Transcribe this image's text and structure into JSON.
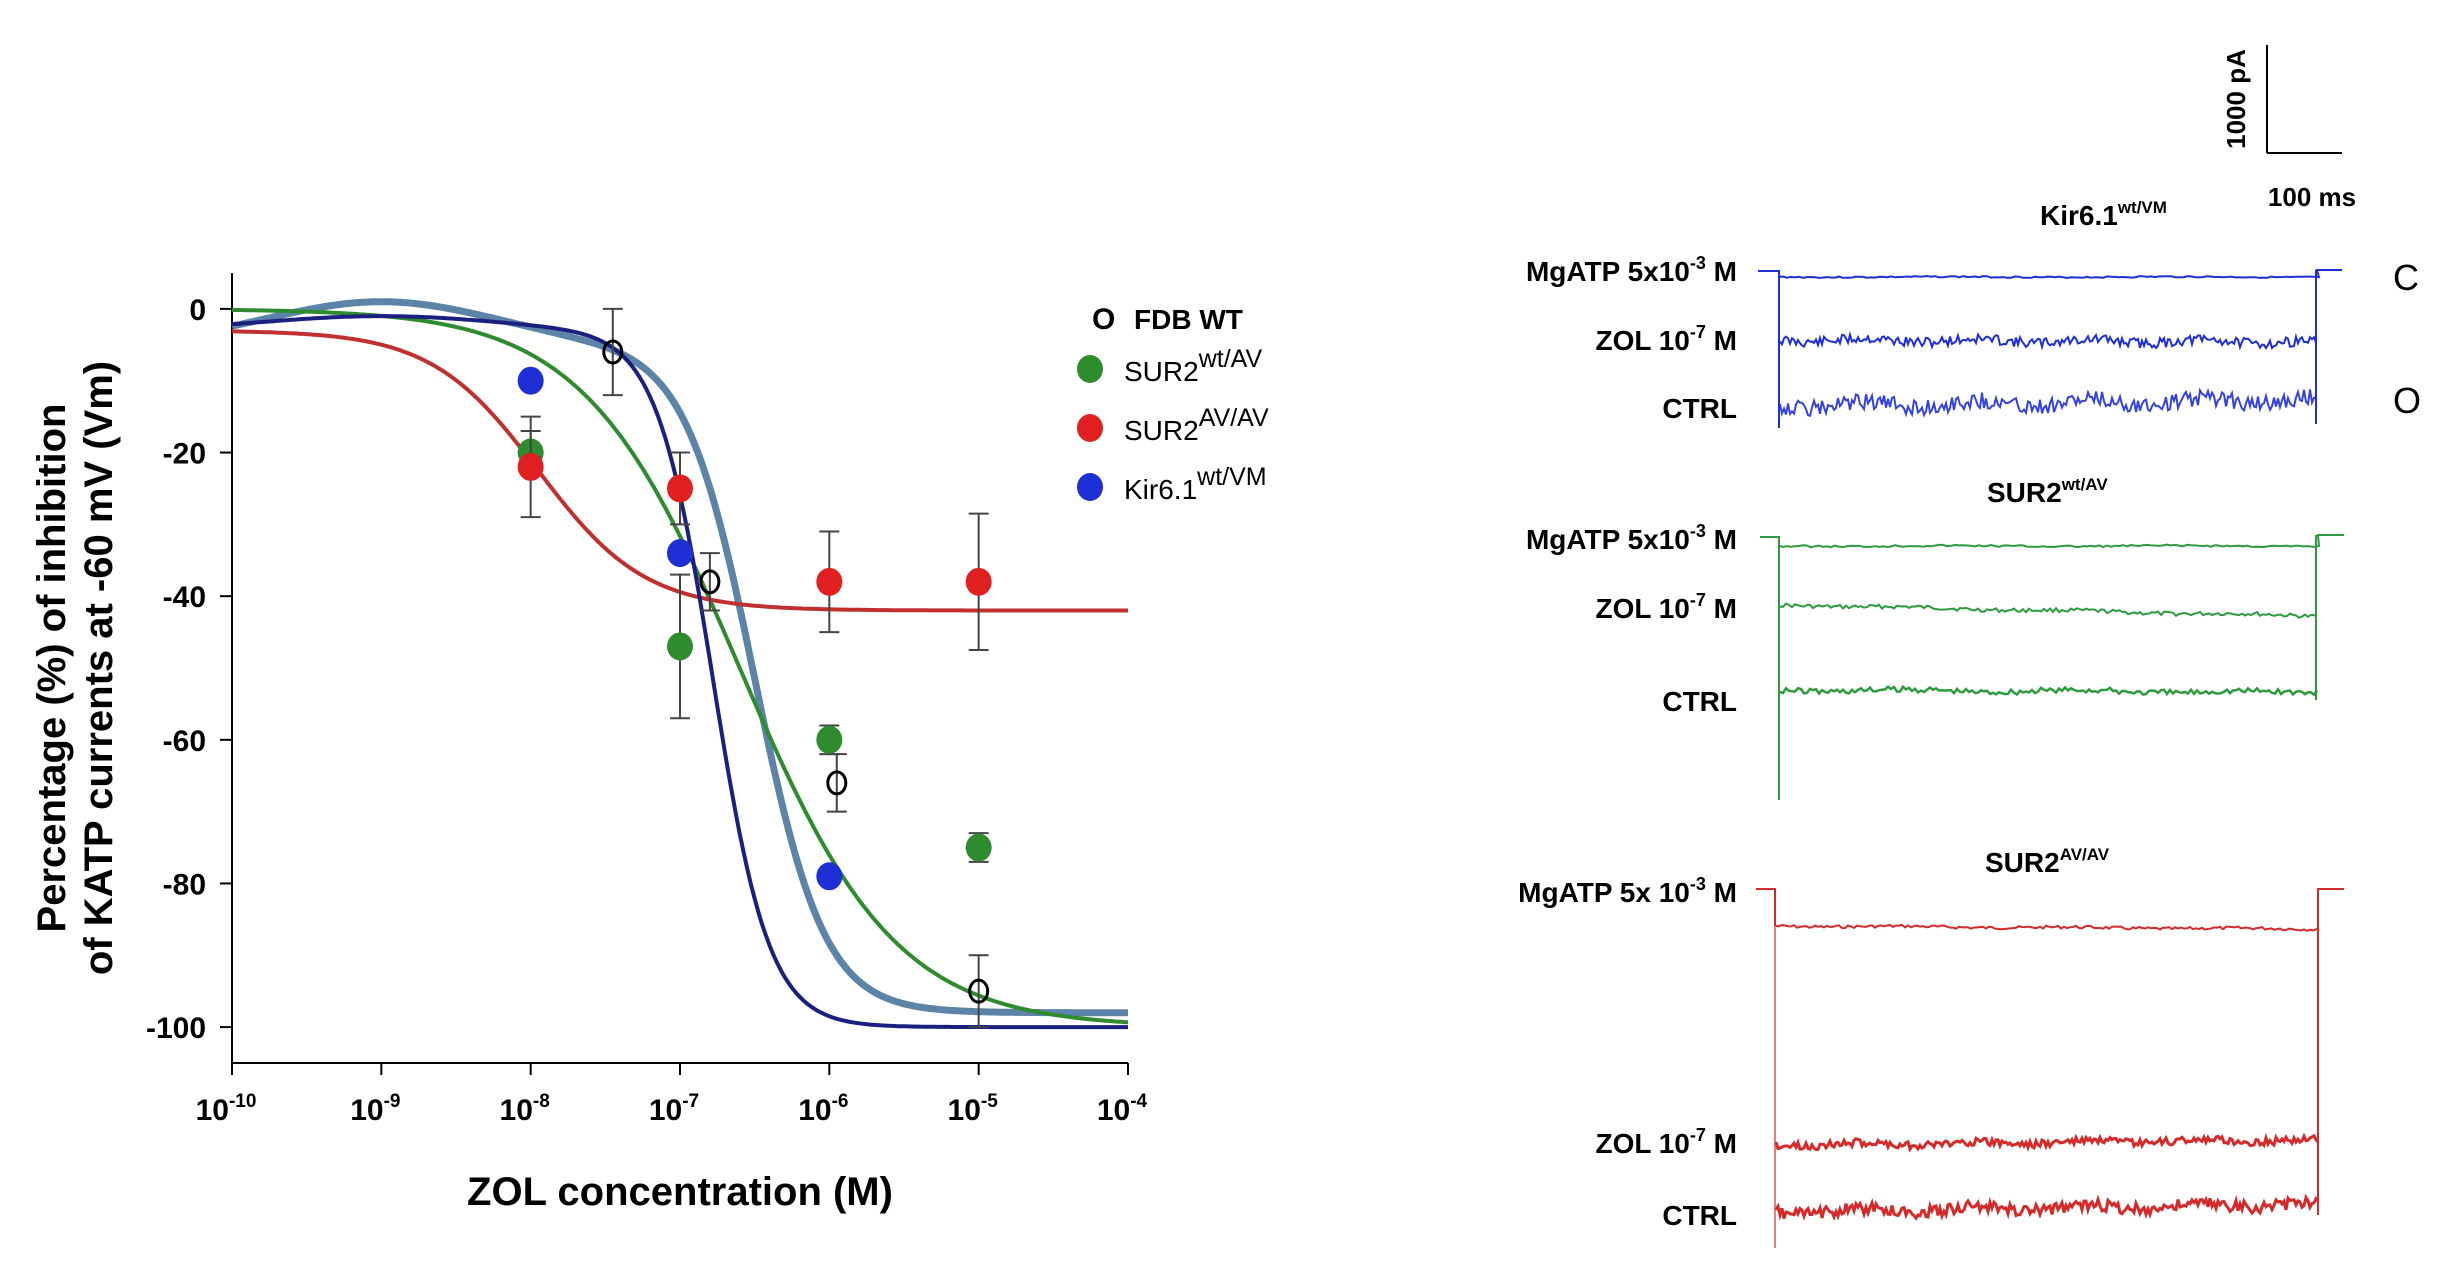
{
  "chart_data": {
    "type": "scatter",
    "xlabel": "ZOL concentration (M)",
    "ylabel_line1": "Percentage (%) of inhibition",
    "ylabel_line2": "of KATP currents at -60 mV (Vm)",
    "x_scale": "log10",
    "xlim_exp": [
      -10,
      -4
    ],
    "x_tick_base": "10",
    "x_tick_exps": [
      "-10",
      "-9",
      "-8",
      "-7",
      "-6",
      "-5",
      "-4"
    ],
    "ylim": [
      -105,
      5
    ],
    "y_ticks": [
      "0",
      "-20",
      "-40",
      "-60",
      "-80",
      "-100"
    ],
    "y_tick_values": [
      0,
      -20,
      -40,
      -60,
      -80,
      -100
    ],
    "legend": [
      {
        "marker": "O",
        "base": "FDB WT",
        "sup": "",
        "color": "#000000",
        "open": true
      },
      {
        "marker": "",
        "base": "SUR2",
        "sup": "wt/AV",
        "color": "#2e8b2e",
        "open": false
      },
      {
        "marker": "",
        "base": "SUR2",
        "sup": "AV/AV",
        "color": "#e02020",
        "open": false
      },
      {
        "marker": "",
        "base": "Kir6.1",
        "sup": "wt/VM",
        "color": "#1f2fd6",
        "open": false
      }
    ],
    "series": [
      {
        "name": "FDB WT",
        "color": "#000000",
        "curve_color": "#5b84a8",
        "open": true,
        "points": [
          {
            "x": -7.45,
            "y": -6,
            "err": 6
          },
          {
            "x": -6.8,
            "y": -38,
            "err": 4
          },
          {
            "x": -5.95,
            "y": -66,
            "err": 4
          },
          {
            "x": -5,
            "y": -95,
            "err": 5
          }
        ],
        "fit": {
          "top": -5,
          "bottom": -98,
          "logEC50": -6.5,
          "hill": 0.85,
          "bump": 6
        }
      },
      {
        "name": "SUR2 wt/AV",
        "color": "#2e8b2e",
        "curve_color": "#2e8b2e",
        "open": false,
        "points": [
          {
            "x": -8,
            "y": -20,
            "err": 3
          },
          {
            "x": -7,
            "y": -47,
            "err": 10
          },
          {
            "x": -6,
            "y": -60,
            "err": 2
          },
          {
            "x": -5,
            "y": -75,
            "err": 2
          }
        ],
        "fit": {
          "top": 0,
          "bottom": -100,
          "logEC50": -6.6,
          "hill": 0.38,
          "bump": 0
        }
      },
      {
        "name": "SUR2 AV/AV",
        "color": "#e02020",
        "curve_color": "#c0302e",
        "open": false,
        "points": [
          {
            "x": -8,
            "y": -22,
            "err": 7
          },
          {
            "x": -7,
            "y": -25,
            "err": 5
          },
          {
            "x": -6,
            "y": -38,
            "err": 7
          },
          {
            "x": -5,
            "y": -38,
            "err": 9.5
          }
        ],
        "fit": {
          "top": -3,
          "bottom": -42,
          "logEC50": -7.95,
          "hill": 0.55,
          "bump": 0
        }
      },
      {
        "name": "Kir6.1 wt/VM",
        "color": "#1f2fd6",
        "curve_color": "#1a1f80",
        "open": false,
        "points": [
          {
            "x": -8,
            "y": -10,
            "err": 0
          },
          {
            "x": -7,
            "y": -34,
            "err": 0
          },
          {
            "x": -6,
            "y": -79,
            "err": 0
          }
        ],
        "fit": {
          "top": -3,
          "bottom": -100,
          "logEC50": -6.78,
          "hill": 1.05,
          "bump": 2
        }
      }
    ]
  },
  "scale_bar": {
    "current": "1000 pA",
    "time": "100 ms"
  },
  "traces": {
    "panel1": {
      "title": "Kir6.1",
      "title_sup": "wt/VM",
      "color": "#1f2fd6",
      "title_color": "#3c7fa8",
      "labels": [
        {
          "text": "MgATP 5x10",
          "sup": "-3",
          "unit": " M"
        },
        {
          "text": "ZOL 10",
          "sup": "-7",
          "unit": " M"
        },
        {
          "text": "CTRL",
          "sup": "",
          "unit": ""
        }
      ],
      "state_closed": "C",
      "state_open": "O"
    },
    "panel2": {
      "title": "SUR2",
      "title_sup": "wt/AV",
      "color": "#2e9a3e",
      "title_color": "#2aae5c",
      "labels": [
        {
          "text": "MgATP 5x10",
          "sup": "-3",
          "unit": " M"
        },
        {
          "text": "ZOL 10",
          "sup": "-7",
          "unit": " M"
        },
        {
          "text": "CTRL",
          "sup": "",
          "unit": ""
        }
      ]
    },
    "panel3": {
      "title": "SUR2",
      "title_sup": "AV/AV",
      "color": "#d42a2a",
      "title_color": "#c8282e",
      "labels": [
        {
          "text": "MgATP 5x 10",
          "sup": "-3",
          "unit": " M"
        },
        {
          "text": "ZOL 10",
          "sup": "-7",
          "unit": " M"
        },
        {
          "text": "CTRL",
          "sup": "",
          "unit": ""
        }
      ]
    }
  }
}
